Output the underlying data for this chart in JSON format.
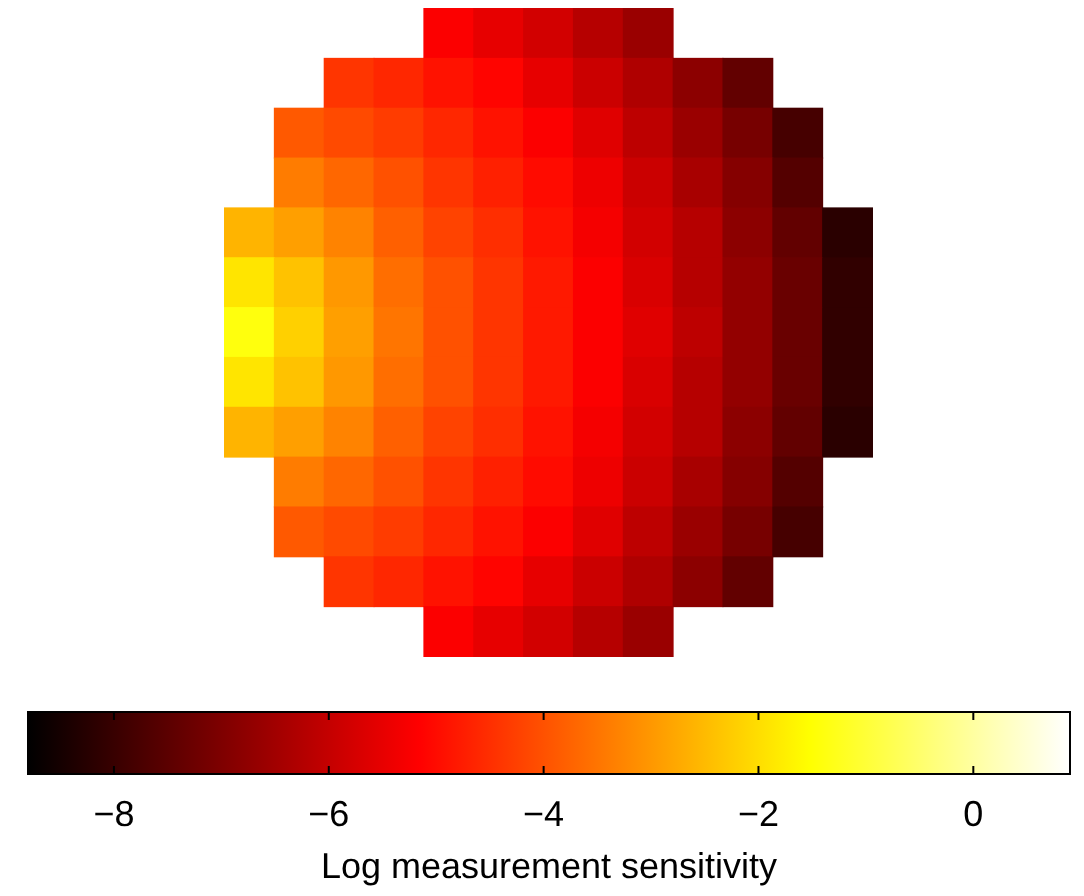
{
  "chart_data": {
    "type": "heatmap",
    "clabel": "Log measurement sensitivity",
    "categories": [
      null,
      null,
      null,
      null,
      null,
      null,
      null,
      null,
      null,
      null,
      null,
      null,
      null
    ],
    "y_categories": [
      null,
      null,
      null,
      null,
      null,
      null,
      null,
      null,
      null,
      null,
      null,
      null,
      null
    ],
    "cells": [
      [
        null,
        null,
        null,
        null,
        -5.2,
        -5.5,
        -5.8,
        -6.2,
        -6.6,
        null,
        null,
        null,
        null
      ],
      [
        null,
        null,
        -4.4,
        -4.6,
        -4.9,
        -5.1,
        -5.5,
        -5.9,
        -6.3,
        -6.8,
        -7.4,
        null,
        null
      ],
      [
        null,
        -3.9,
        -4.1,
        -4.3,
        -4.6,
        -4.9,
        -5.2,
        -5.6,
        -6.1,
        -6.6,
        -7.1,
        -7.8,
        null
      ],
      [
        null,
        -3.4,
        -3.7,
        -4.0,
        -4.4,
        -4.7,
        -5.0,
        -5.4,
        -5.9,
        -6.4,
        -6.9,
        -7.6,
        null
      ],
      [
        -2.6,
        -2.9,
        -3.3,
        -3.8,
        -4.2,
        -4.5,
        -4.9,
        -5.3,
        -5.8,
        -6.2,
        -6.8,
        -7.4,
        -8.2
      ],
      [
        -1.9,
        -2.4,
        -3.0,
        -3.6,
        -4.0,
        -4.4,
        -4.8,
        -5.2,
        -5.7,
        -6.2,
        -6.7,
        -7.3,
        -8.1
      ],
      [
        -1.4,
        -2.2,
        -2.9,
        -3.5,
        -4.0,
        -4.4,
        -4.8,
        -5.2,
        -5.6,
        -6.1,
        -6.7,
        -7.3,
        -8.1
      ],
      [
        -1.9,
        -2.4,
        -3.0,
        -3.6,
        -4.0,
        -4.4,
        -4.8,
        -5.2,
        -5.7,
        -6.2,
        -6.7,
        -7.3,
        -8.1
      ],
      [
        -2.6,
        -2.9,
        -3.3,
        -3.8,
        -4.2,
        -4.5,
        -4.9,
        -5.3,
        -5.8,
        -6.2,
        -6.8,
        -7.4,
        -8.2
      ],
      [
        null,
        -3.4,
        -3.7,
        -4.0,
        -4.4,
        -4.7,
        -5.0,
        -5.4,
        -5.9,
        -6.4,
        -6.9,
        -7.6,
        null
      ],
      [
        null,
        -3.9,
        -4.1,
        -4.3,
        -4.6,
        -4.9,
        -5.2,
        -5.6,
        -6.1,
        -6.6,
        -7.1,
        -7.8,
        null
      ],
      [
        null,
        null,
        -4.4,
        -4.6,
        -4.9,
        -5.1,
        -5.5,
        -5.9,
        -6.3,
        -6.8,
        -7.4,
        null,
        null
      ],
      [
        null,
        null,
        null,
        null,
        -5.2,
        -5.5,
        -5.8,
        -6.2,
        -6.6,
        null,
        null,
        null,
        null
      ]
    ],
    "clim": [
      -8.8,
      0.9
    ],
    "cticks": [
      {
        "value": -8,
        "label": "−8"
      },
      {
        "value": -6,
        "label": "−6"
      },
      {
        "value": -4,
        "label": "−4"
      },
      {
        "value": -2,
        "label": "−2"
      },
      {
        "value": 0,
        "label": "0"
      }
    ]
  }
}
